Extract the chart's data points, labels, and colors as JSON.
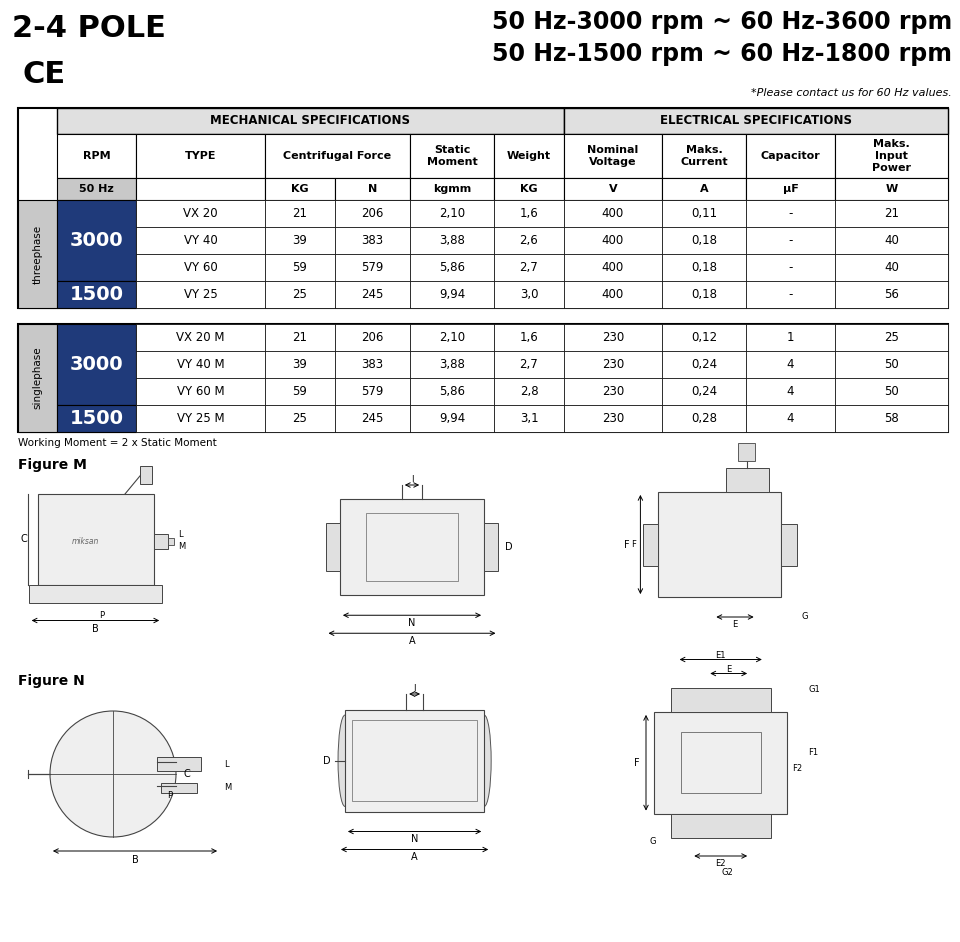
{
  "title_left_line1": "2-4 POLE",
  "title_left_line2": "CE",
  "title_right_line1": "50 Hz-3000 rpm ~ 60 Hz-3600 rpm",
  "title_right_line2": "50 Hz-1500 rpm ~ 60 Hz-1800 rpm",
  "subtitle_note": "*Please contact us for 60 Hz values.",
  "mech_spec_header": "MECHANICAL SPECIFICATIONS",
  "elec_spec_header": "ELECTRICAL SPECIFICATIONS",
  "threephase_label": "threephase",
  "singlephase_label": "singlephase",
  "rpm_3000": "3000",
  "rpm_1500": "1500",
  "threephase_rows": [
    [
      "VX 20",
      "21",
      "206",
      "2,10",
      "1,6",
      "400",
      "0,11",
      "-",
      "21"
    ],
    [
      "VY 40",
      "39",
      "383",
      "3,88",
      "2,6",
      "400",
      "0,18",
      "-",
      "40"
    ],
    [
      "VY 60",
      "59",
      "579",
      "5,86",
      "2,7",
      "400",
      "0,18",
      "-",
      "40"
    ],
    [
      "VY 25",
      "25",
      "245",
      "9,94",
      "3,0",
      "400",
      "0,18",
      "-",
      "56"
    ]
  ],
  "singlephase_rows": [
    [
      "VX 20 M",
      "21",
      "206",
      "2,10",
      "1,6",
      "230",
      "0,12",
      "1",
      "25"
    ],
    [
      "VY 40 M",
      "39",
      "383",
      "3,88",
      "2,7",
      "230",
      "0,24",
      "4",
      "50"
    ],
    [
      "VY 60 M",
      "59",
      "579",
      "5,86",
      "2,8",
      "230",
      "0,24",
      "4",
      "50"
    ],
    [
      "VY 25 M",
      "25",
      "245",
      "9,94",
      "3,1",
      "230",
      "0,28",
      "4",
      "58"
    ]
  ],
  "working_moment_note": "Working Moment = 2 x Static Moment",
  "figure_m_label": "Figure M",
  "figure_n_label": "Figure N",
  "dark_blue": "#1f3a7a",
  "light_gray": "#c8c8c8",
  "header_bg": "#e0e0e0",
  "bg_color": "#ffffff"
}
